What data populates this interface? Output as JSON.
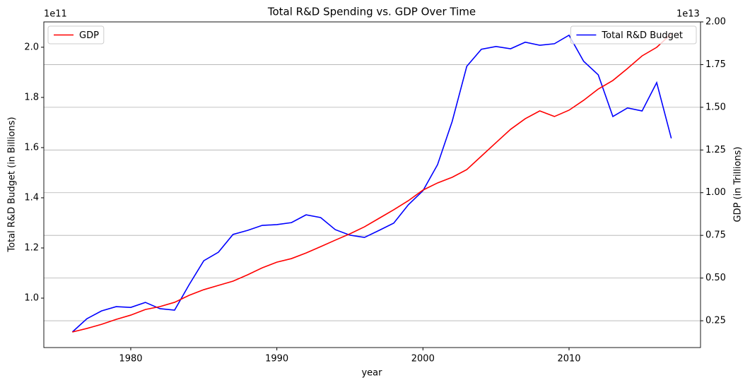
{
  "chart_data": {
    "type": "line",
    "title": "Total R&D Spending vs. GDP Over Time",
    "xlabel": "year",
    "ylabel": "Total R&D Budget (in Billions)",
    "y2label": "GDP (in Trillions)",
    "y_offset_text": "1e11",
    "y2_offset_text": "1e13",
    "x": [
      1976,
      1977,
      1978,
      1979,
      1980,
      1981,
      1982,
      1983,
      1984,
      1985,
      1986,
      1987,
      1988,
      1989,
      1990,
      1991,
      1992,
      1993,
      1994,
      1995,
      1996,
      1997,
      1998,
      1999,
      2000,
      2001,
      2002,
      2003,
      2004,
      2005,
      2006,
      2007,
      2008,
      2009,
      2010,
      2011,
      2012,
      2013,
      2014,
      2015,
      2016,
      2017
    ],
    "series": [
      {
        "name": "Total R&D Budget",
        "color": "#0000ff",
        "axis": "y",
        "values": [
          0.865,
          0.918,
          0.949,
          0.966,
          0.963,
          0.983,
          0.958,
          0.952,
          1.054,
          1.149,
          1.183,
          1.254,
          1.27,
          1.29,
          1.293,
          1.301,
          1.332,
          1.321,
          1.273,
          1.251,
          1.242,
          1.27,
          1.299,
          1.372,
          1.428,
          1.532,
          1.704,
          1.924,
          1.992,
          2.003,
          1.994,
          2.02,
          2.008,
          2.014,
          2.048,
          1.944,
          1.89,
          1.724,
          1.758,
          1.746,
          1.859,
          1.637
        ]
      },
      {
        "name": "GDP",
        "color": "#ff0000",
        "axis": "y2",
        "values": [
          0.184,
          0.205,
          0.229,
          0.258,
          0.283,
          0.316,
          0.333,
          0.358,
          0.399,
          0.432,
          0.457,
          0.482,
          0.519,
          0.56,
          0.593,
          0.614,
          0.647,
          0.684,
          0.722,
          0.759,
          0.8,
          0.85,
          0.9,
          0.953,
          1.015,
          1.057,
          1.09,
          1.135,
          1.214,
          1.293,
          1.371,
          1.433,
          1.479,
          1.446,
          1.483,
          1.541,
          1.607,
          1.657,
          1.727,
          1.801,
          1.851,
          1.93
        ]
      }
    ],
    "xlim": [
      1974.05,
      2019.0
    ],
    "xticks": [
      1980,
      1990,
      2000,
      2010
    ],
    "ylim": [
      0.803,
      2.101
    ],
    "yticks": [
      {
        "value": 1,
        "label": "1.0"
      },
      1.2,
      1.4,
      1.6,
      1.8,
      {
        "value": 2,
        "label": "2.0"
      }
    ],
    "y2lim": [
      0.093,
      2.0
    ],
    "y2ticks": [
      0.25,
      {
        "value": 0.5,
        "label": "0.50"
      },
      0.75,
      {
        "value": 1,
        "label": "1.00"
      },
      1.25,
      {
        "value": 1.5,
        "label": "1.50"
      },
      1.75,
      {
        "value": 2,
        "label": "2.00"
      }
    ],
    "grid_axis": "y2",
    "legend_loc": "upper right",
    "y2_legend_loc": "upper left"
  }
}
